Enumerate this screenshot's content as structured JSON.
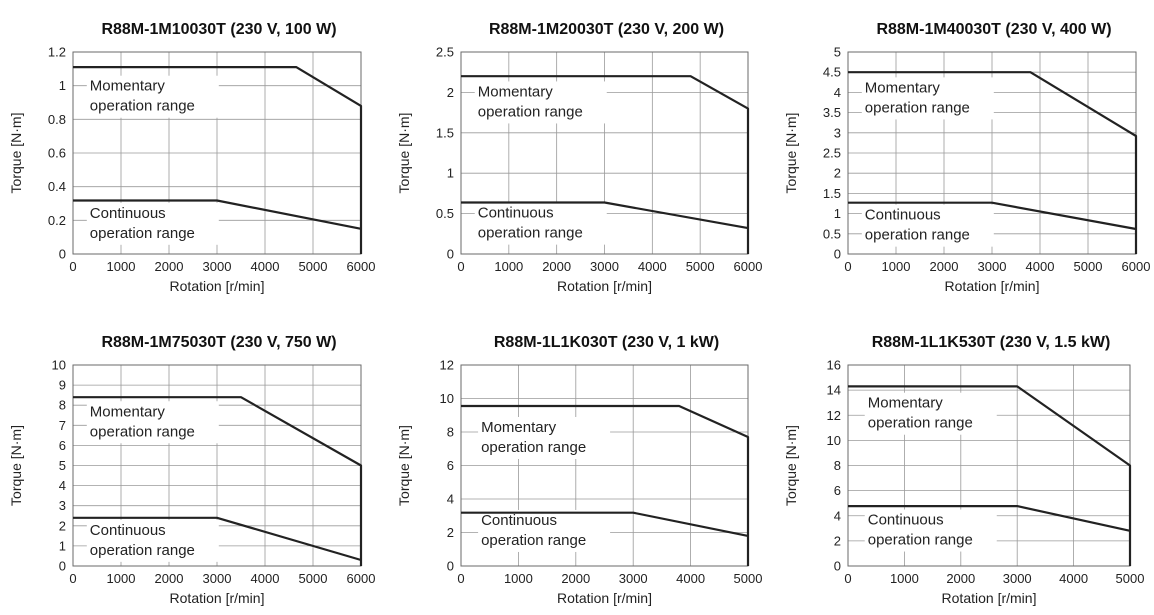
{
  "chart_data": [
    {
      "type": "line",
      "title": "R88M-1M10030T (230 V, 100 W)",
      "xlabel": "Rotation [r/min]",
      "ylabel": "Torque [N·m]",
      "xlim": [
        0,
        6000
      ],
      "ylim": [
        0,
        1.2
      ],
      "xticks": [
        "0",
        "1000",
        "2000",
        "3000",
        "4000",
        "5000",
        "6000"
      ],
      "yticks": [
        "0",
        "0.2",
        "0.4",
        "0.6",
        "0.8",
        "1",
        "1.2"
      ],
      "grid": true,
      "series": [
        {
          "x": [
            0,
            4650,
            6000,
            6000
          ],
          "y": [
            1.11,
            1.11,
            0.88,
            0
          ]
        },
        {
          "x": [
            0,
            3000,
            6000
          ],
          "y": [
            0.318,
            0.318,
            0.15
          ]
        }
      ],
      "annotations": [
        {
          "text": [
            "Momentary",
            "operation range"
          ]
        },
        {
          "text": [
            "Continuous",
            "operation range"
          ]
        }
      ]
    },
    {
      "type": "line",
      "title": "R88M-1M20030T (230 V, 200 W)",
      "xlabel": "Rotation [r/min]",
      "ylabel": "Torque [N·m]",
      "xlim": [
        0,
        6000
      ],
      "ylim": [
        0,
        2.5
      ],
      "xticks": [
        "0",
        "1000",
        "2000",
        "3000",
        "4000",
        "5000",
        "6000"
      ],
      "yticks": [
        "0",
        "0.5",
        "1",
        "1.5",
        "2",
        "2.5"
      ],
      "grid": true,
      "series": [
        {
          "x": [
            0,
            4800,
            6000,
            6000
          ],
          "y": [
            2.2,
            2.2,
            1.8,
            0
          ]
        },
        {
          "x": [
            0,
            3000,
            6000
          ],
          "y": [
            0.637,
            0.637,
            0.32
          ]
        }
      ],
      "annotations": [
        {
          "text": [
            "Momentary",
            "operation range"
          ]
        },
        {
          "text": [
            "Continuous",
            "operation range"
          ]
        }
      ]
    },
    {
      "type": "line",
      "title": "R88M-1M40030T (230 V, 400 W)",
      "xlabel": "Rotation [r/min]",
      "ylabel": "Torque [N·m]",
      "xlim": [
        0,
        6000
      ],
      "ylim": [
        0,
        5
      ],
      "xticks": [
        "0",
        "1000",
        "2000",
        "3000",
        "4000",
        "5000",
        "6000"
      ],
      "yticks": [
        "0",
        "0.5",
        "1",
        "1.5",
        "2",
        "2.5",
        "3",
        "3.5",
        "4",
        "4.5",
        "5"
      ],
      "grid": true,
      "series": [
        {
          "x": [
            0,
            3800,
            6000,
            6000
          ],
          "y": [
            4.5,
            4.5,
            2.92,
            0
          ]
        },
        {
          "x": [
            0,
            3000,
            6000
          ],
          "y": [
            1.27,
            1.27,
            0.62
          ]
        }
      ],
      "annotations": [
        {
          "text": [
            "Momentary",
            "operation range"
          ]
        },
        {
          "text": [
            "Continuous",
            "operation range"
          ]
        }
      ]
    },
    {
      "type": "line",
      "title": "R88M-1M75030T (230 V, 750 W)",
      "xlabel": "Rotation [r/min]",
      "ylabel": "Torque [N·m]",
      "xlim": [
        0,
        6000
      ],
      "ylim": [
        0,
        10
      ],
      "xticks": [
        "0",
        "1000",
        "2000",
        "3000",
        "4000",
        "5000",
        "6000"
      ],
      "yticks": [
        "0",
        "1",
        "2",
        "3",
        "4",
        "5",
        "6",
        "7",
        "8",
        "9",
        "10"
      ],
      "grid": true,
      "series": [
        {
          "x": [
            0,
            3500,
            6000,
            6000
          ],
          "y": [
            8.4,
            8.4,
            5.0,
            0
          ]
        },
        {
          "x": [
            0,
            3000,
            6000
          ],
          "y": [
            2.4,
            2.4,
            0.3
          ]
        }
      ],
      "annotations": [
        {
          "text": [
            "Momentary",
            "operation range"
          ]
        },
        {
          "text": [
            "Continuous",
            "operation range"
          ]
        }
      ]
    },
    {
      "type": "line",
      "title": "R88M-1L1K030T (230 V, 1 kW)",
      "xlabel": "Rotation [r/min]",
      "ylabel": "Torque [N·m]",
      "xlim": [
        0,
        5000
      ],
      "ylim": [
        0,
        12
      ],
      "xticks": [
        "0",
        "1000",
        "2000",
        "3000",
        "4000",
        "5000"
      ],
      "yticks": [
        "0",
        "2",
        "4",
        "6",
        "8",
        "10",
        "12"
      ],
      "grid": true,
      "series": [
        {
          "x": [
            0,
            3800,
            5000,
            5000
          ],
          "y": [
            9.55,
            9.55,
            7.7,
            0
          ]
        },
        {
          "x": [
            0,
            3000,
            5000
          ],
          "y": [
            3.18,
            3.18,
            1.8
          ]
        }
      ],
      "annotations": [
        {
          "text": [
            "Momentary",
            "operation range"
          ]
        },
        {
          "text": [
            "Continuous",
            "operation range"
          ]
        }
      ]
    },
    {
      "type": "line",
      "title": "R88M-1L1K530T (230 V, 1.5 kW)",
      "xlabel": "Rotation [r/min]",
      "ylabel": "Torque [N·m]",
      "xlim": [
        0,
        5000
      ],
      "ylim": [
        0,
        16
      ],
      "xticks": [
        "0",
        "1000",
        "2000",
        "3000",
        "4000",
        "5000"
      ],
      "yticks": [
        "0",
        "2",
        "4",
        "6",
        "8",
        "10",
        "12",
        "14",
        "16"
      ],
      "grid": true,
      "series": [
        {
          "x": [
            0,
            3000,
            5000,
            5000
          ],
          "y": [
            14.3,
            14.3,
            8.0,
            0
          ]
        },
        {
          "x": [
            0,
            3000,
            5000
          ],
          "y": [
            4.77,
            4.77,
            2.8
          ]
        }
      ],
      "annotations": [
        {
          "text": [
            "Momentary",
            "operation range"
          ]
        },
        {
          "text": [
            "Continuous",
            "operation range"
          ]
        }
      ]
    }
  ]
}
